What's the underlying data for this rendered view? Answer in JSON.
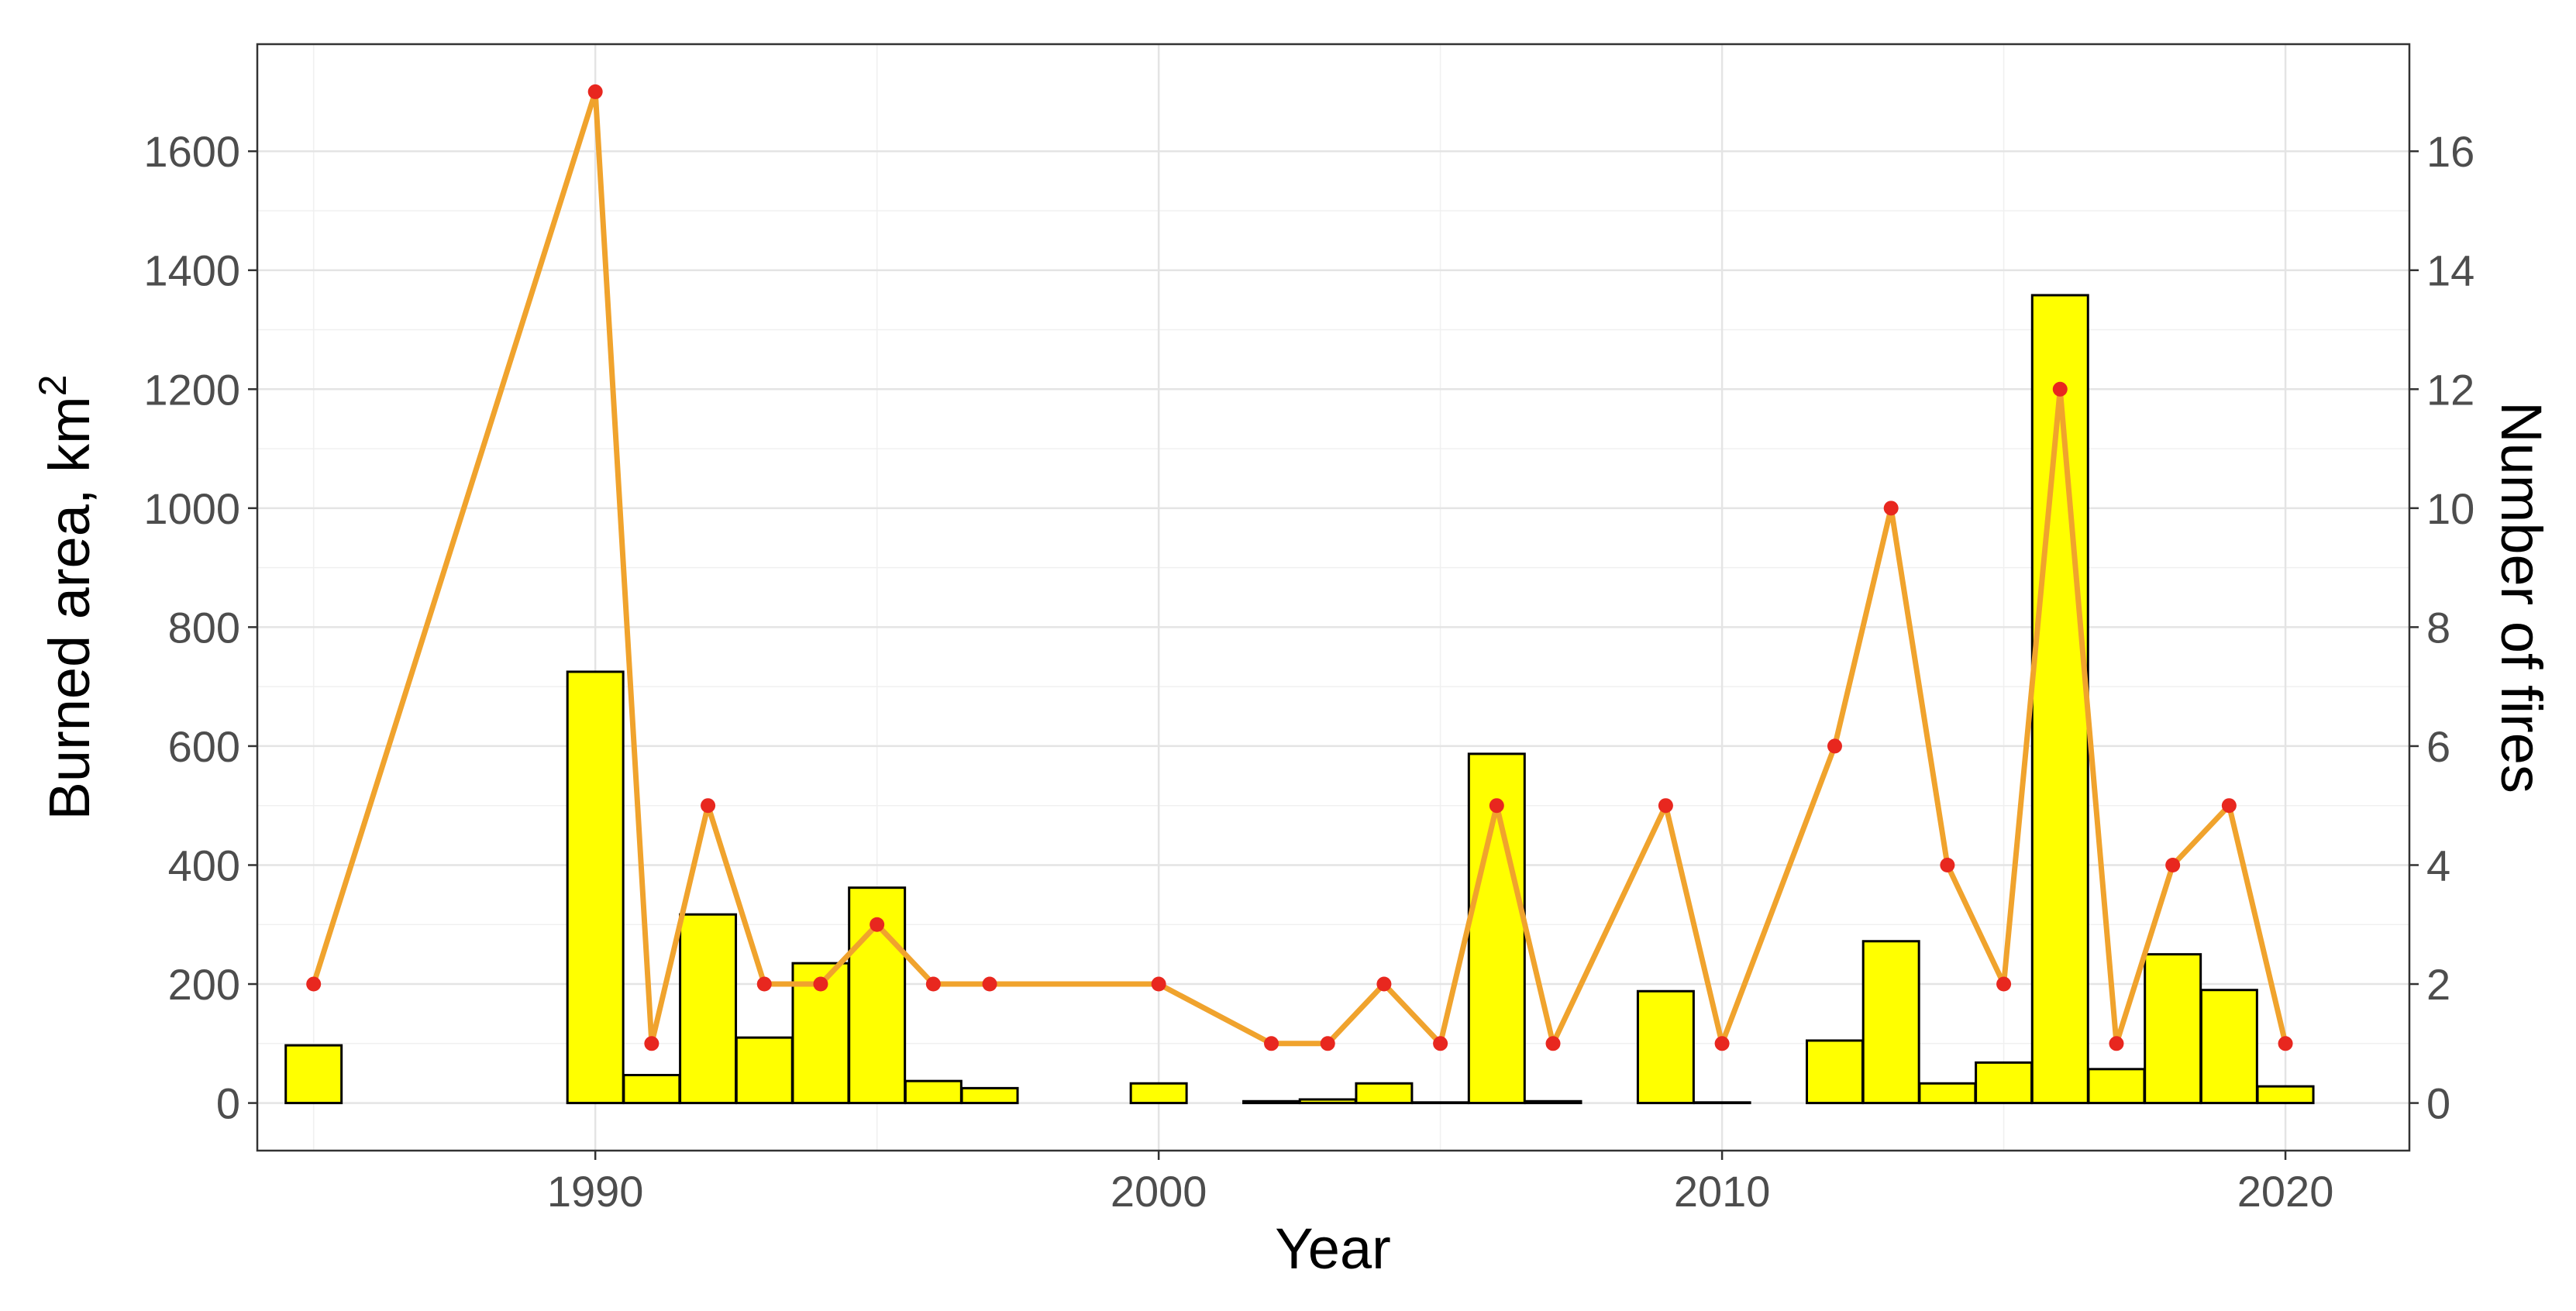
{
  "chart_data": {
    "type": "bar+line",
    "xlabel": "Year",
    "ylabel_text": "Burned area,  km",
    "ylabel_sup": "2",
    "y2label": "Number of fires",
    "xlim": [
      1984,
      2022.2
    ],
    "ylim": [
      -80,
      1780
    ],
    "y2lim": [
      -0.8,
      17.8
    ],
    "xticks": [
      1990,
      2000,
      2010,
      2020
    ],
    "yticks": [
      0,
      200,
      400,
      600,
      800,
      1000,
      1200,
      1400,
      1600
    ],
    "y2ticks": [
      0,
      2,
      4,
      6,
      8,
      10,
      12,
      14,
      16
    ],
    "grid": true,
    "bar_series": {
      "name": "Burned area",
      "color": "#ffff00",
      "edge_color": "#000000",
      "x": [
        1985,
        1990,
        1991,
        1992,
        1993,
        1994,
        1995,
        1996,
        1997,
        2000,
        2002,
        2003,
        2004,
        2005,
        2006,
        2007,
        2009,
        2010,
        2012,
        2013,
        2014,
        2015,
        2016,
        2017,
        2018,
        2019,
        2020
      ],
      "values": [
        97,
        725,
        47,
        317,
        110,
        235,
        362,
        37,
        25,
        33,
        3,
        6,
        33,
        1,
        587,
        3,
        188,
        1,
        105,
        272,
        33,
        68,
        1358,
        57,
        250,
        190,
        28
      ]
    },
    "line_series": {
      "name": "Number of fires",
      "line_color": "#f0a32d",
      "point_color": "#e8271f",
      "x": [
        1985,
        1990,
        1991,
        1992,
        1993,
        1994,
        1995,
        1996,
        1997,
        2000,
        2002,
        2003,
        2004,
        2005,
        2006,
        2007,
        2009,
        2010,
        2012,
        2013,
        2014,
        2015,
        2016,
        2017,
        2018,
        2019,
        2020
      ],
      "values": [
        2,
        17,
        1,
        5,
        2,
        2,
        3,
        2,
        2,
        2,
        1,
        1,
        2,
        1,
        5,
        1,
        5,
        1,
        6,
        10,
        4,
        2,
        12,
        1,
        4,
        5,
        1
      ]
    }
  }
}
